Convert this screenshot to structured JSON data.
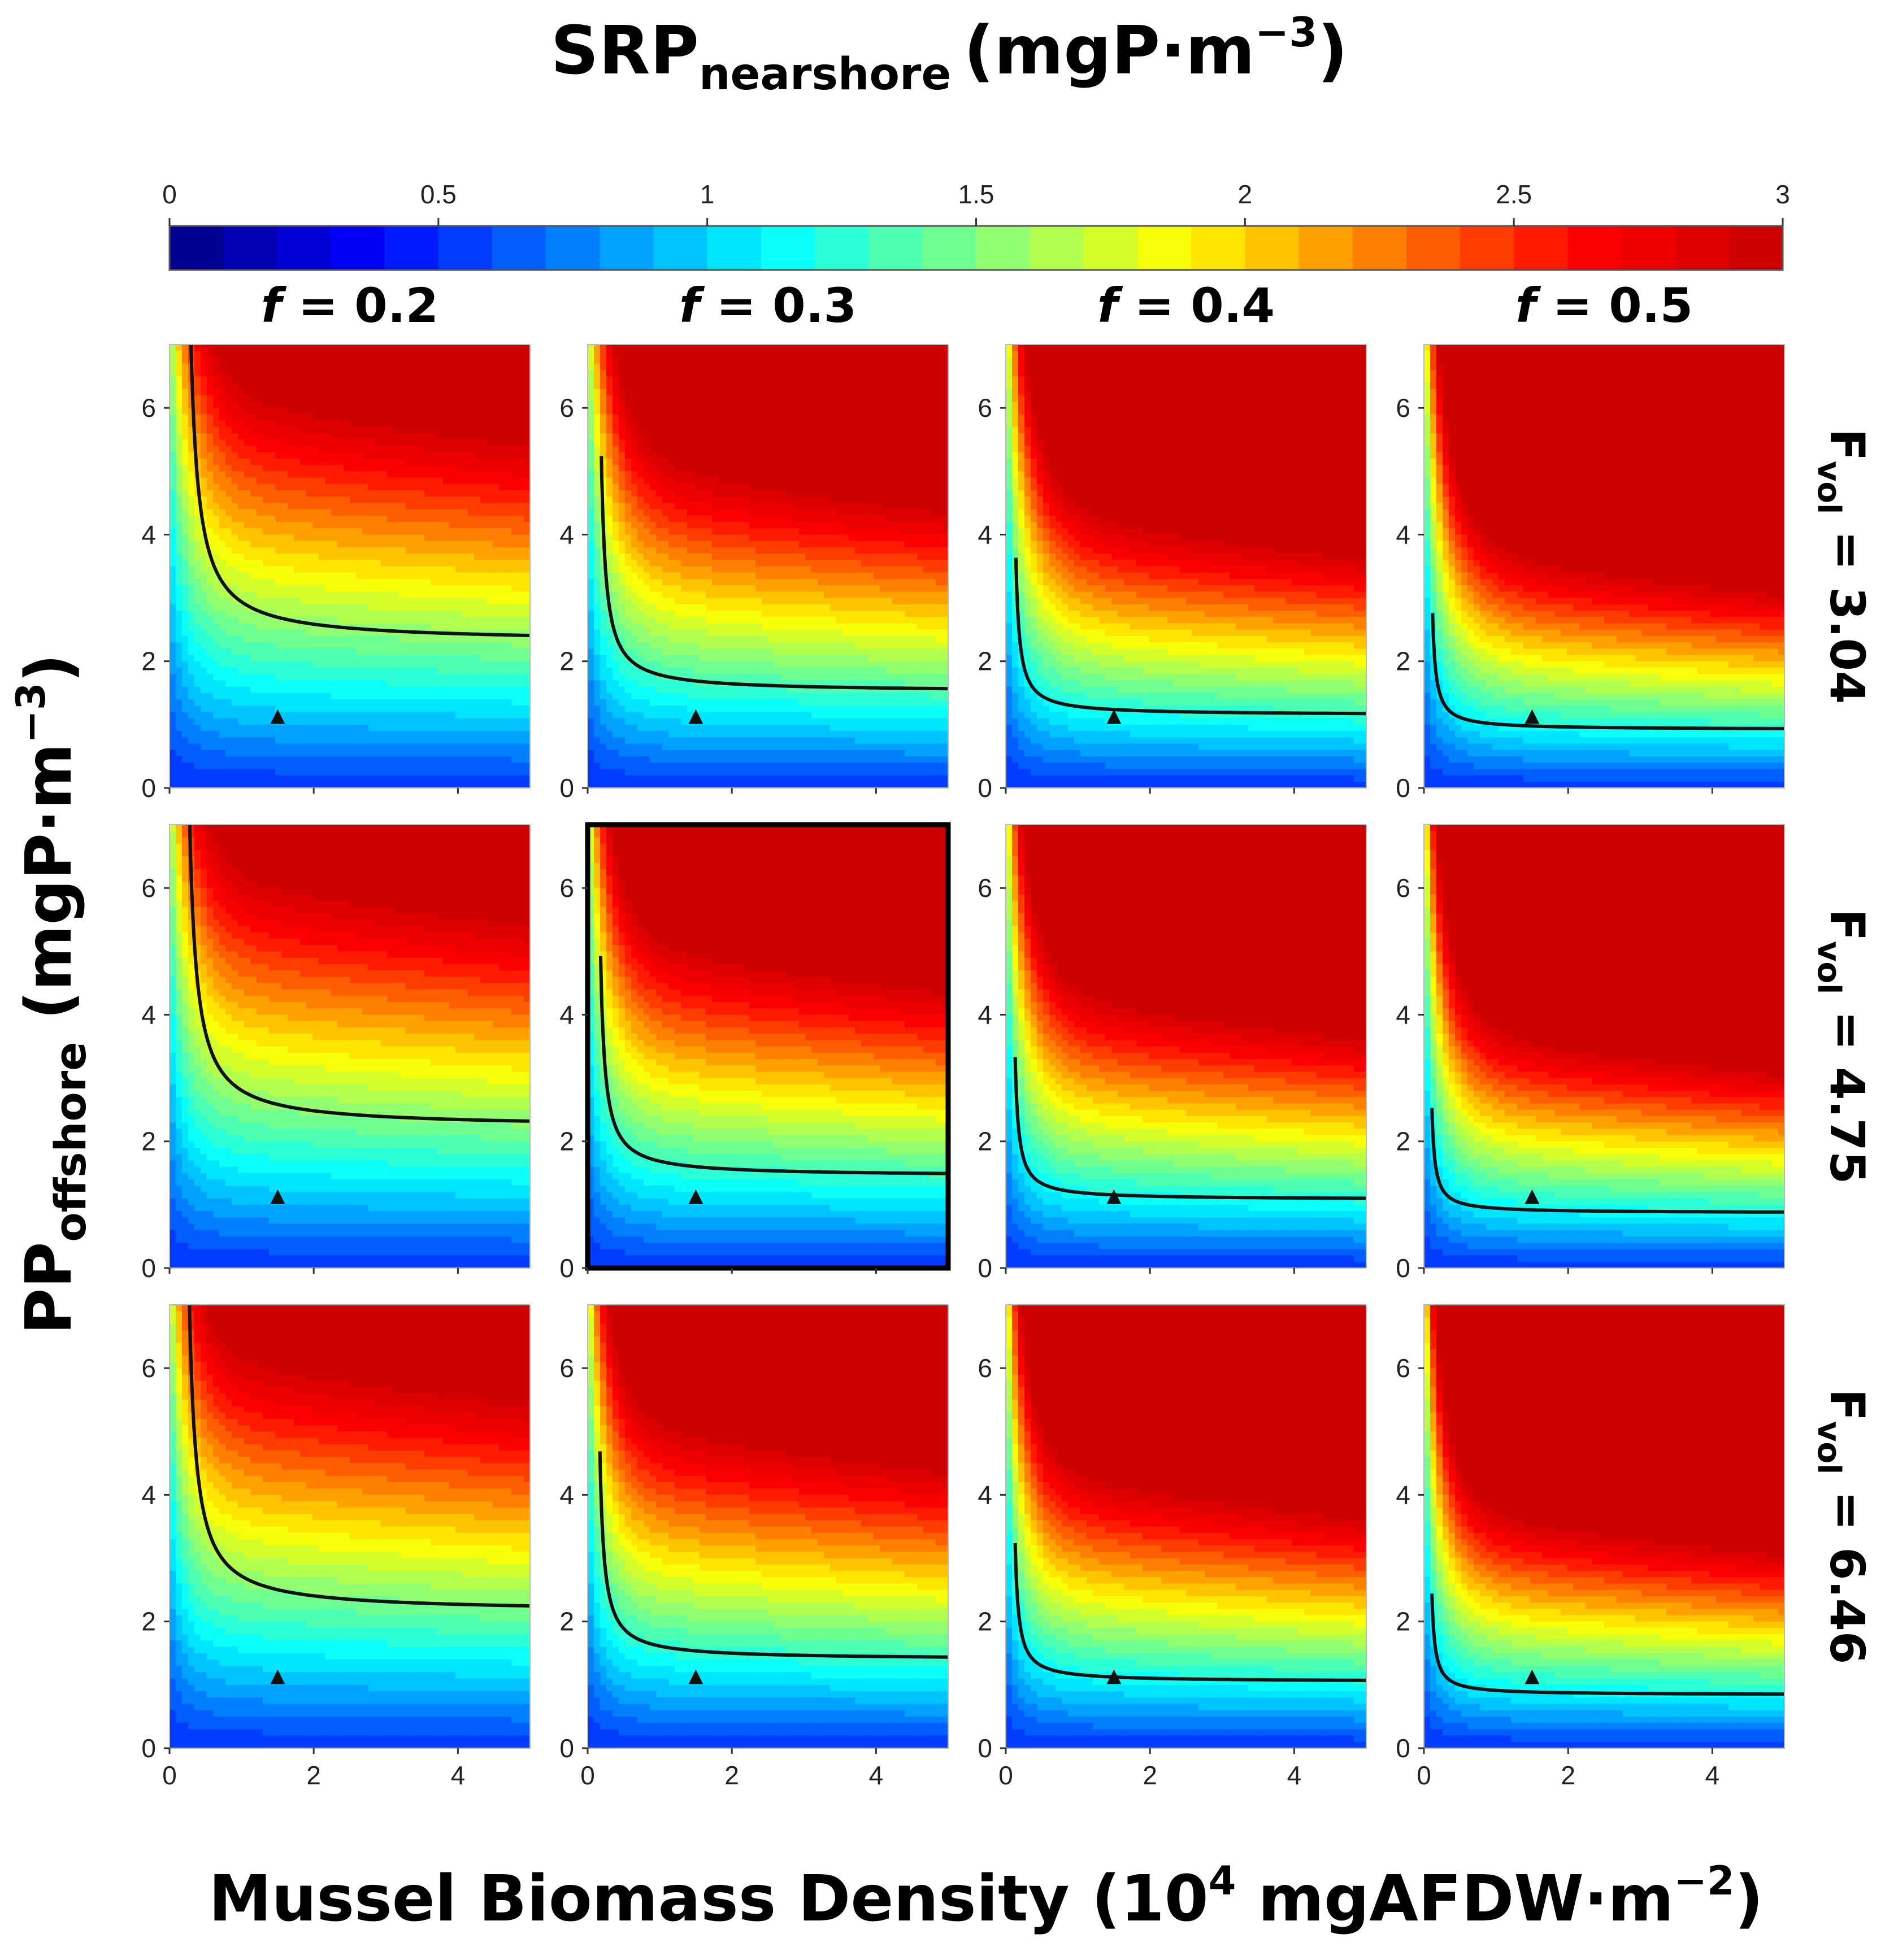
{
  "chart_data": {
    "type": "heatmap",
    "title": "SRP",
    "title_sub": "nearshore",
    "title_unit": "(mgP·m",
    "title_unit_sup": "−3",
    "title_close": ")",
    "colorbar": {
      "ticks": [
        "0",
        "0.5",
        "1",
        "1.5",
        "2",
        "2.5",
        "3"
      ],
      "range": [
        0,
        3
      ],
      "colors": [
        "#00007f",
        "#0000ff",
        "#0080ff",
        "#00ffff",
        "#80ff80",
        "#ffff00",
        "#ff8000",
        "#ff0000",
        "#c80000"
      ]
    },
    "xlabel": "Mussel Biomass Density (10",
    "xlabel_sup": "4",
    "xlabel_unit": " mgAFDW·m",
    "xlabel_unit_sup": "−2",
    "xlabel_close": ")",
    "ylabel": "PP",
    "ylabel_sub": "offshore",
    "ylabel_unit": " (mgP·m",
    "ylabel_unit_sup": "−3",
    "ylabel_close": ")",
    "xlim": [
      0,
      5
    ],
    "ylim": [
      0,
      7
    ],
    "xticks": [
      "0",
      "2",
      "4"
    ],
    "yticks": [
      "0",
      "2",
      "4",
      "6"
    ],
    "columns": [
      {
        "label": "f = 0.2",
        "f_italic": "f",
        "rest": " = 0.2",
        "f": 0.2
      },
      {
        "label": "f = 0.3",
        "f_italic": "f",
        "rest": " = 0.3",
        "f": 0.3
      },
      {
        "label": "f = 0.4",
        "f_italic": "f",
        "rest": " = 0.4",
        "f": 0.4
      },
      {
        "label": "f = 0.5",
        "f_italic": "f",
        "rest": " = 0.5",
        "f": 0.5
      }
    ],
    "rows": [
      {
        "label": "F",
        "sub": "vol",
        "value": " = 3.04",
        "fvol": 3.04
      },
      {
        "label": "F",
        "sub": "vol",
        "value": " = 4.75",
        "fvol": 4.75
      },
      {
        "label": "F",
        "sub": "vol",
        "value": " = 6.46",
        "fvol": 6.46
      }
    ],
    "contour_level": 1.0,
    "marker": {
      "x": 1.5,
      "y": 1.1,
      "shape": "triangle"
    },
    "highlighted_panel": {
      "row": 1,
      "col": 1
    },
    "contour_asymptotes": [
      [
        {
          "a": 2.3,
          "b": 0.25
        },
        {
          "a": 1.52,
          "b": 0.17
        },
        {
          "a": 1.15,
          "b": 0.12
        },
        {
          "a": 0.92,
          "b": 0.1
        }
      ],
      [
        {
          "a": 2.22,
          "b": 0.24
        },
        {
          "a": 1.45,
          "b": 0.16
        },
        {
          "a": 1.08,
          "b": 0.11
        },
        {
          "a": 0.87,
          "b": 0.09
        }
      ],
      [
        {
          "a": 2.15,
          "b": 0.24
        },
        {
          "a": 1.4,
          "b": 0.15
        },
        {
          "a": 1.05,
          "b": 0.11
        },
        {
          "a": 0.84,
          "b": 0.09
        }
      ]
    ]
  }
}
